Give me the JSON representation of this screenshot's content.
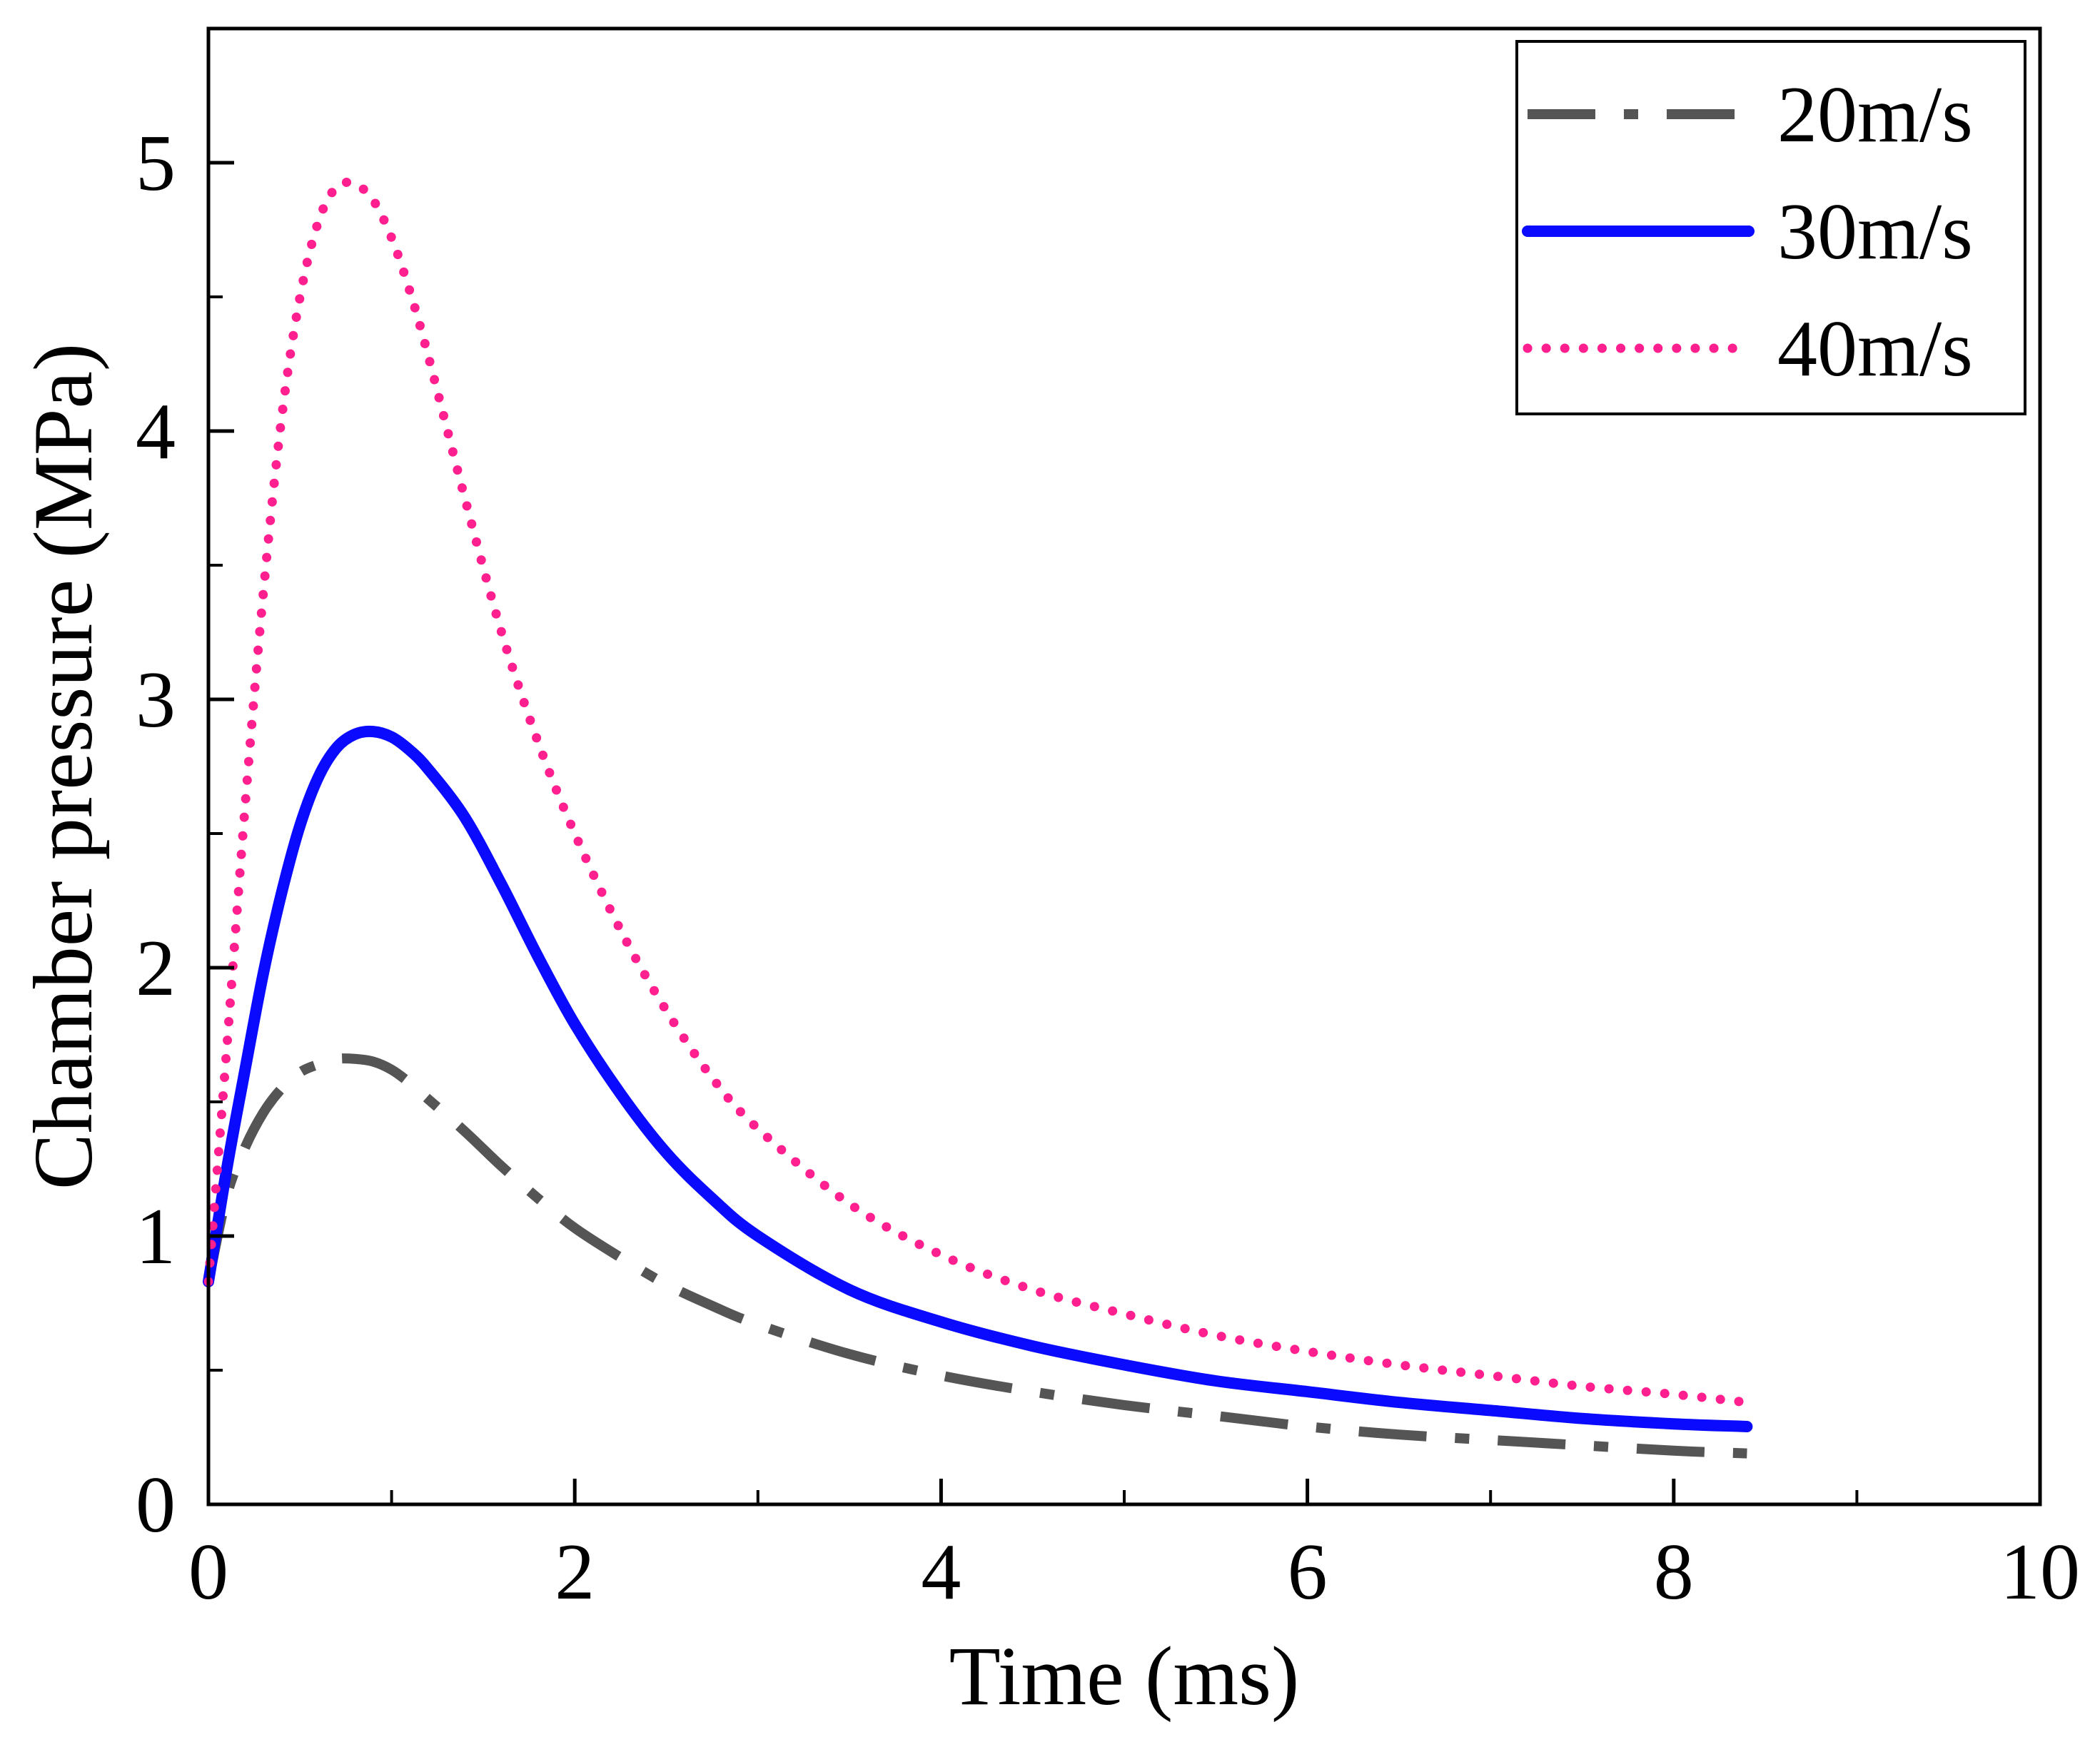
{
  "chart_data": {
    "type": "line",
    "title": "",
    "xlabel": "Time (ms)",
    "ylabel": "Chamber pressure (MPa)",
    "xlim": [
      0,
      10
    ],
    "ylim": [
      0,
      5.5
    ],
    "xticks": [
      0,
      2,
      4,
      6,
      8,
      10
    ],
    "xtick_labels": [
      "0",
      "2",
      "4",
      "6",
      "8",
      "10"
    ],
    "xminor": [
      1,
      3,
      5,
      7,
      9
    ],
    "yticks": [
      0,
      1,
      2,
      3,
      4,
      5
    ],
    "ytick_labels": [
      "0",
      "1",
      "2",
      "3",
      "4",
      "5"
    ],
    "yminor": [
      0.5,
      1.5,
      2.5,
      3.5,
      4.5
    ],
    "grid": false,
    "legend_position": "top-right",
    "x": [
      0,
      0.1,
      0.2,
      0.3,
      0.4,
      0.5,
      0.6,
      0.7,
      0.8,
      0.9,
      1.0,
      1.1,
      1.2,
      1.4,
      1.6,
      1.8,
      2.0,
      2.25,
      2.5,
      2.75,
      3.0,
      3.5,
      4.0,
      4.5,
      5.0,
      5.5,
      6.0,
      6.5,
      7.0,
      7.5,
      8.0,
      8.4
    ],
    "series": [
      {
        "name": "20m/s",
        "color": "#555555",
        "dash": "dash-dot",
        "values": [
          0.83,
          1.15,
          1.33,
          1.46,
          1.55,
          1.61,
          1.64,
          1.66,
          1.66,
          1.65,
          1.62,
          1.57,
          1.51,
          1.39,
          1.26,
          1.14,
          1.03,
          0.92,
          0.82,
          0.74,
          0.67,
          0.56,
          0.48,
          0.42,
          0.37,
          0.33,
          0.29,
          0.26,
          0.24,
          0.22,
          0.2,
          0.19
        ]
      },
      {
        "name": "30m/s",
        "color": "#0a0aff",
        "dash": "solid",
        "values": [
          0.83,
          1.25,
          1.62,
          1.98,
          2.28,
          2.53,
          2.71,
          2.82,
          2.87,
          2.88,
          2.86,
          2.81,
          2.74,
          2.56,
          2.31,
          2.04,
          1.79,
          1.53,
          1.31,
          1.14,
          1.0,
          0.8,
          0.68,
          0.59,
          0.52,
          0.46,
          0.42,
          0.38,
          0.35,
          0.32,
          0.3,
          0.29
        ]
      },
      {
        "name": "40m/s",
        "color": "#ff1f8e",
        "dash": "dotted",
        "values": [
          0.83,
          1.7,
          2.6,
          3.4,
          4.05,
          4.5,
          4.78,
          4.91,
          4.92,
          4.86,
          4.72,
          4.52,
          4.28,
          3.75,
          3.25,
          2.84,
          2.5,
          2.14,
          1.84,
          1.59,
          1.4,
          1.12,
          0.93,
          0.8,
          0.71,
          0.63,
          0.57,
          0.52,
          0.48,
          0.44,
          0.41,
          0.38
        ]
      }
    ]
  }
}
